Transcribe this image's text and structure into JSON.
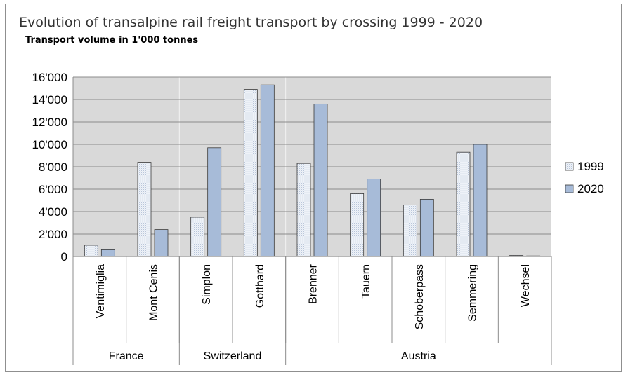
{
  "chart_data": {
    "type": "bar",
    "title": "Evolution of transalpine rail freight transport by crossing 1999 - 2020",
    "subtitle": "Transport volume in 1'000 tonnes",
    "categories": [
      "Ventimiglia",
      "Mont Cenis",
      "Simplon",
      "Gotthard",
      "Brenner",
      "Tauern",
      "Schoberpass",
      "Semmering",
      "Wechsel"
    ],
    "groups": [
      {
        "label": "France",
        "count": 2
      },
      {
        "label": "Switzerland",
        "count": 2
      },
      {
        "label": "Austria",
        "count": 5
      }
    ],
    "series": [
      {
        "name": "1999",
        "values": [
          1000,
          8400,
          3500,
          14900,
          8300,
          5600,
          4600,
          9300,
          100
        ],
        "color": "#dde5f0"
      },
      {
        "name": "2020",
        "values": [
          600,
          2400,
          9700,
          15300,
          13600,
          6900,
          5100,
          10000,
          50
        ],
        "color": "#a7bbd8"
      }
    ],
    "yticks": [
      "0",
      "2'000",
      "4'000",
      "6'000",
      "8'000",
      "10'000",
      "12'000",
      "14'000",
      "16'000"
    ],
    "ylim": [
      0,
      16000
    ],
    "grid": true,
    "legend_position": "right",
    "colors": {
      "plot_background": "#d9d9d9",
      "gridline": "#8c8c8c"
    }
  }
}
